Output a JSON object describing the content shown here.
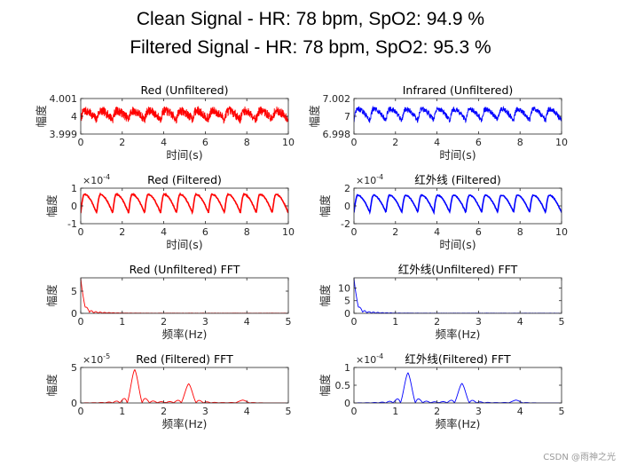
{
  "figure": {
    "title_line1": "Clean Signal - HR: 78 bpm, SpO2: 94.9 %",
    "title_line2": "Filtered Signal - HR: 78 bpm, SpO2: 95.3 %",
    "watermark": "CSDN @雨神之光"
  },
  "colors": {
    "red": "#ff0000",
    "blue": "#0000ff",
    "axis": "#262626"
  },
  "chart_data": [
    {
      "id": "p1",
      "type": "line",
      "title": "Red (Unfiltered)",
      "xlabel": "时间(s)",
      "ylabel": "幅度",
      "xlim": [
        0,
        10
      ],
      "ylim": [
        3.999,
        4.001
      ],
      "xticks": [
        0,
        2,
        4,
        6,
        8,
        10
      ],
      "xtick_labels": [
        "0",
        "2",
        "4",
        "6",
        "8",
        "10"
      ],
      "yticks": [
        3.999,
        4,
        4.001
      ],
      "ytick_labels": [
        "3.999",
        "4",
        "4.001"
      ],
      "exponent": "",
      "color": "#ff0000",
      "series": [
        {
          "name": "",
          "x_start": 0,
          "x_end": 10,
          "baseline": 4.0,
          "amplitude": 0.0003,
          "noise": 0.00025,
          "freq_hz": 1.3
        }
      ]
    },
    {
      "id": "p2",
      "type": "line",
      "title": "Infrared (Unfiltered)",
      "xlabel": "时间(s)",
      "ylabel": "幅度",
      "xlim": [
        0,
        10
      ],
      "ylim": [
        6.998,
        7.002
      ],
      "xticks": [
        0,
        2,
        4,
        6,
        8,
        10
      ],
      "xtick_labels": [
        "0",
        "2",
        "4",
        "6",
        "8",
        "10"
      ],
      "yticks": [
        6.998,
        7,
        7.002
      ],
      "ytick_labels": [
        "6.998",
        "7",
        "7.002"
      ],
      "exponent": "",
      "color": "#0000ff",
      "series": [
        {
          "name": "",
          "x_start": 0,
          "x_end": 10,
          "baseline": 7.0,
          "amplitude": 0.0008,
          "noise": 0.0003,
          "freq_hz": 1.3
        }
      ]
    },
    {
      "id": "p3",
      "type": "line",
      "title": "Red (Filtered)",
      "xlabel": "时间(s)",
      "ylabel": "幅度",
      "xlim": [
        0,
        10
      ],
      "ylim": [
        -1,
        1
      ],
      "xticks": [
        0,
        2,
        4,
        6,
        8,
        10
      ],
      "xtick_labels": [
        "0",
        "2",
        "4",
        "6",
        "8",
        "10"
      ],
      "yticks": [
        -1,
        0,
        1
      ],
      "ytick_labels": [
        "-1",
        "0",
        "1"
      ],
      "exponent": "-4",
      "color": "#ff0000",
      "series": [
        {
          "name": "",
          "x_start": 0,
          "x_end": 10,
          "baseline": 0,
          "amplitude": 0.65,
          "noise": 0.03,
          "freq_hz": 1.3
        }
      ]
    },
    {
      "id": "p4",
      "type": "line",
      "title": "红外线 (Filtered)",
      "xlabel": "时间(s)",
      "ylabel": "幅度",
      "xlim": [
        0,
        10
      ],
      "ylim": [
        -2,
        2
      ],
      "xticks": [
        0,
        2,
        4,
        6,
        8,
        10
      ],
      "xtick_labels": [
        "0",
        "2",
        "4",
        "6",
        "8",
        "10"
      ],
      "yticks": [
        -2,
        0,
        2
      ],
      "ytick_labels": [
        "-2",
        "0",
        "2"
      ],
      "exponent": "-4",
      "color": "#0000ff",
      "series": [
        {
          "name": "",
          "x_start": 0,
          "x_end": 10,
          "baseline": 0,
          "amplitude": 1.2,
          "noise": 0.05,
          "freq_hz": 1.3
        }
      ]
    },
    {
      "id": "p5",
      "type": "line",
      "title": "Red (Unfiltered) FFT",
      "xlabel": "频率(Hz)",
      "ylabel": "幅度",
      "xlim": [
        0,
        5
      ],
      "ylim": [
        0,
        8
      ],
      "xticks": [
        0,
        1,
        2,
        3,
        4,
        5
      ],
      "xtick_labels": [
        "0",
        "1",
        "2",
        "3",
        "4",
        "5"
      ],
      "yticks": [
        0,
        5
      ],
      "ytick_labels": [
        "0",
        "5"
      ],
      "exponent": "",
      "color": "#ff0000",
      "series": [
        {
          "name": "",
          "dc_value": 8,
          "decay": 0.06,
          "floor": 0.05,
          "peaks": []
        }
      ]
    },
    {
      "id": "p6",
      "type": "line",
      "title": "红外线(Unfiltered) FFT",
      "xlabel": "频率(Hz)",
      "ylabel": "幅度",
      "xlim": [
        0,
        5
      ],
      "ylim": [
        0,
        14
      ],
      "xticks": [
        0,
        1,
        2,
        3,
        4,
        5
      ],
      "xtick_labels": [
        "0",
        "1",
        "2",
        "3",
        "4",
        "5"
      ],
      "yticks": [
        0,
        5,
        10
      ],
      "ytick_labels": [
        "0",
        "5",
        "10"
      ],
      "exponent": "",
      "color": "#0000ff",
      "series": [
        {
          "name": "",
          "dc_value": 14,
          "decay": 0.06,
          "floor": 0.08,
          "peaks": []
        }
      ]
    },
    {
      "id": "p7",
      "type": "line",
      "title": "Red (Filtered) FFT",
      "xlabel": "频率(Hz)",
      "ylabel": "幅度",
      "xlim": [
        0,
        5
      ],
      "ylim": [
        0,
        5
      ],
      "xticks": [
        0,
        1,
        2,
        3,
        4,
        5
      ],
      "xtick_labels": [
        "0",
        "1",
        "2",
        "3",
        "4",
        "5"
      ],
      "yticks": [
        0,
        5
      ],
      "ytick_labels": [
        "0",
        "5"
      ],
      "exponent": "-5",
      "color": "#ff0000",
      "series": [
        {
          "name": "",
          "dc_value": 0,
          "decay": 0.1,
          "floor": 0,
          "peaks": [
            {
              "f": 1.3,
              "value": 4.7,
              "width": 0.18
            },
            {
              "f": 2.6,
              "value": 2.7,
              "width": 0.18
            },
            {
              "f": 3.9,
              "value": 0.4,
              "width": 0.18
            }
          ]
        }
      ]
    },
    {
      "id": "p8",
      "type": "line",
      "title": "红外线(Filtered) FFT",
      "xlabel": "频率(Hz)",
      "ylabel": "幅度",
      "xlim": [
        0,
        5
      ],
      "ylim": [
        0,
        1
      ],
      "xticks": [
        0,
        1,
        2,
        3,
        4,
        5
      ],
      "xtick_labels": [
        "0",
        "1",
        "2",
        "3",
        "4",
        "5"
      ],
      "yticks": [
        0,
        0.5,
        1
      ],
      "ytick_labels": [
        "0",
        "0.5",
        "1"
      ],
      "exponent": "-4",
      "color": "#0000ff",
      "series": [
        {
          "name": "",
          "dc_value": 0,
          "decay": 0.1,
          "floor": 0,
          "peaks": [
            {
              "f": 1.3,
              "value": 0.85,
              "width": 0.18
            },
            {
              "f": 2.6,
              "value": 0.55,
              "width": 0.18
            },
            {
              "f": 3.9,
              "value": 0.08,
              "width": 0.18
            }
          ]
        }
      ]
    }
  ]
}
